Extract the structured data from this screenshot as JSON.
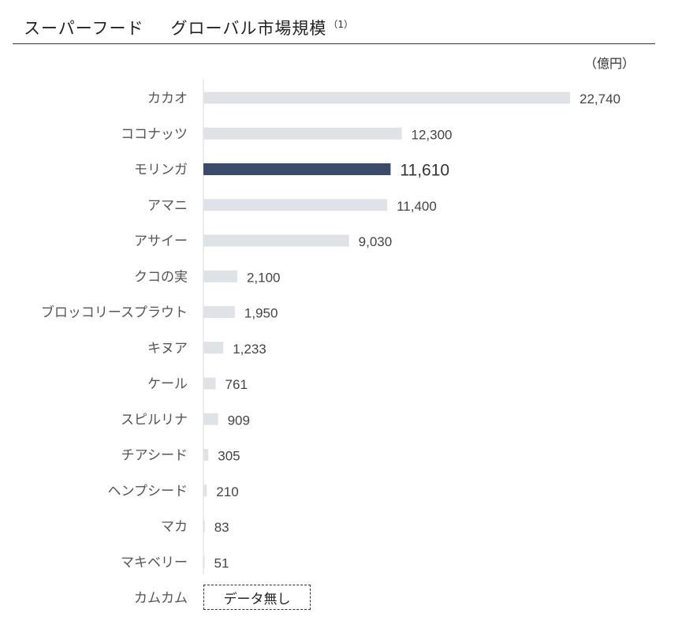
{
  "header": {
    "title": "スーパーフード",
    "subtitle": "グローバル市場規模",
    "note": "（1）",
    "unit": "（億円）"
  },
  "chart_data": {
    "type": "bar",
    "orientation": "horizontal",
    "categories": [
      "カカオ",
      "ココナッツ",
      "モリンガ",
      "アマニ",
      "アサイー",
      "クコの実",
      "ブロッコリースプラウト",
      "キヌア",
      "ケール",
      "スピルリナ",
      "チアシード",
      "ヘンプシード",
      "マカ",
      "マキベリー",
      "カムカム"
    ],
    "values": [
      22740,
      12300,
      11610,
      11400,
      9030,
      2100,
      1950,
      1233,
      761,
      909,
      305,
      210,
      83,
      51,
      null
    ],
    "value_labels": [
      "22,740",
      "12,300",
      "11,610",
      "11,400",
      "9,030",
      "2,100",
      "1,950",
      "1,233",
      "761",
      "909",
      "305",
      "210",
      "83",
      "51",
      "データ無し"
    ],
    "highlight": "モリンガ",
    "xlim": [
      0,
      22740
    ],
    "grid": false,
    "colors": {
      "default": "#dfe2e6",
      "highlight": "#3a4b6b"
    }
  }
}
